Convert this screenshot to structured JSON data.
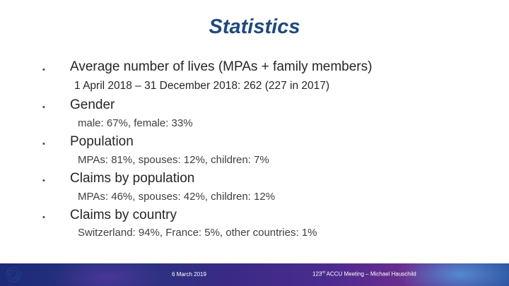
{
  "slide": {
    "title": "Statistics",
    "items": [
      {
        "heading": "Average number of lives (MPAs + family members)",
        "detail": "1 April 2018 – 31 December 2018: 262 (227 in 2017)"
      },
      {
        "heading": "Gender",
        "detail": "male: 67%, female: 33%"
      },
      {
        "heading": "Population",
        "detail": "MPAs: 81%, spouses: 12%, children: 7%"
      },
      {
        "heading": "Claims by population",
        "detail": "MPAs: 46%, spouses: 42%, children: 12%"
      },
      {
        "heading": "Claims by country",
        "detail": "Switzerland: 94%, France: 5%, other countries: 1%"
      }
    ]
  },
  "footer": {
    "date": "6 March 2019",
    "meeting_number": "123",
    "meeting_suffix": "rd",
    "meeting_text": " ACCU Meeting – Michael Hauschild"
  },
  "colors": {
    "title": "#1f497d",
    "footer_bar": "#28347f"
  },
  "icons": {
    "logo": "cern-logo"
  }
}
